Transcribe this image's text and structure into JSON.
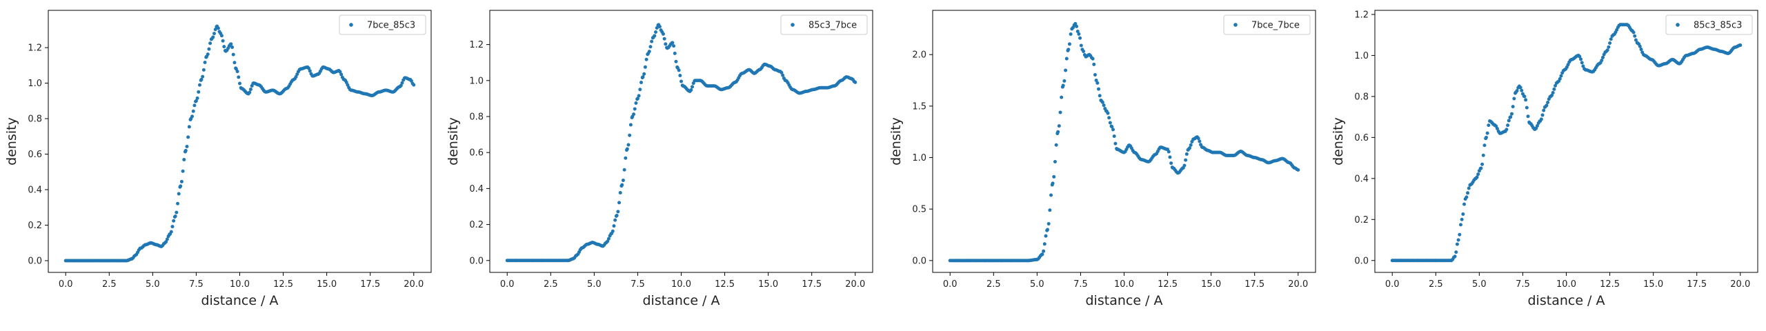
{
  "figure": {
    "colors": {
      "series": "#1f77b4",
      "axes": "#000000",
      "background": "#ffffff"
    }
  },
  "chart_data": [
    {
      "type": "scatter",
      "xlabel": "distance / A",
      "ylabel": "density",
      "xlim": [
        -1.0,
        21.0
      ],
      "ylim": [
        -0.066,
        1.41
      ],
      "xticks": [
        "0.0",
        "2.5",
        "5.0",
        "7.5",
        "10.0",
        "12.5",
        "15.0",
        "17.5",
        "20.0"
      ],
      "yticks": [
        "0.0",
        "0.2",
        "0.4",
        "0.6",
        "0.8",
        "1.0",
        "1.2"
      ],
      "legend": "top-right",
      "grid": false,
      "series": [
        {
          "name": "7bce_85c3",
          "x": [
            0,
            0.5,
            1,
            1.5,
            2,
            2.5,
            3,
            3.5,
            3.8,
            4.0,
            4.3,
            4.6,
            4.9,
            5.2,
            5.5,
            5.7,
            6.0,
            6.3,
            6.6,
            6.9,
            7.2,
            7.5,
            7.8,
            8.1,
            8.4,
            8.7,
            8.9,
            9.2,
            9.5,
            9.8,
            10.1,
            10.5,
            10.8,
            11.1,
            11.5,
            11.9,
            12.3,
            12.7,
            13.1,
            13.5,
            13.9,
            14.2,
            14.5,
            14.8,
            15.1,
            15.4,
            15.7,
            16.0,
            16.4,
            16.8,
            17.2,
            17.6,
            18.0,
            18.4,
            18.8,
            19.2,
            19.5,
            19.8,
            20.0
          ],
          "y": [
            0,
            0,
            0,
            0,
            0,
            0,
            0,
            0,
            0.01,
            0.03,
            0.07,
            0.09,
            0.1,
            0.09,
            0.08,
            0.1,
            0.15,
            0.25,
            0.42,
            0.62,
            0.8,
            0.9,
            1.02,
            1.15,
            1.25,
            1.32,
            1.28,
            1.18,
            1.22,
            1.08,
            0.97,
            0.94,
            1.0,
            0.99,
            0.95,
            0.96,
            0.94,
            0.97,
            1.02,
            1.08,
            1.09,
            1.04,
            1.05,
            1.09,
            1.08,
            1.06,
            1.07,
            1.02,
            0.96,
            0.95,
            0.94,
            0.93,
            0.95,
            0.96,
            0.95,
            0.98,
            1.03,
            1.02,
            0.99
          ]
        }
      ]
    },
    {
      "type": "scatter",
      "xlabel": "distance / A",
      "ylabel": "density",
      "xlim": [
        -1.0,
        21.0
      ],
      "ylim": [
        -0.066,
        1.39
      ],
      "xticks": [
        "0.0",
        "2.5",
        "5.0",
        "7.5",
        "10.0",
        "12.5",
        "15.0",
        "17.5",
        "20.0"
      ],
      "yticks": [
        "0.0",
        "0.2",
        "0.4",
        "0.6",
        "0.8",
        "1.0",
        "1.2"
      ],
      "legend": "top-right",
      "grid": false,
      "series": [
        {
          "name": "85c3_7bce",
          "x": [
            0,
            0.5,
            1,
            1.5,
            2,
            2.5,
            3,
            3.5,
            3.8,
            4.0,
            4.3,
            4.6,
            4.9,
            5.2,
            5.5,
            5.7,
            6.0,
            6.3,
            6.6,
            6.9,
            7.2,
            7.5,
            7.8,
            8.1,
            8.4,
            8.7,
            8.9,
            9.2,
            9.5,
            9.8,
            10.1,
            10.5,
            10.8,
            11.1,
            11.5,
            11.9,
            12.3,
            12.7,
            13.1,
            13.5,
            13.9,
            14.2,
            14.5,
            14.8,
            15.1,
            15.4,
            15.7,
            16.0,
            16.4,
            16.8,
            17.2,
            17.6,
            18.0,
            18.4,
            18.8,
            19.2,
            19.5,
            19.8,
            20.0
          ],
          "y": [
            0,
            0,
            0,
            0,
            0,
            0,
            0,
            0,
            0.01,
            0.03,
            0.07,
            0.09,
            0.1,
            0.09,
            0.08,
            0.1,
            0.15,
            0.25,
            0.42,
            0.62,
            0.8,
            0.9,
            1.02,
            1.15,
            1.24,
            1.31,
            1.27,
            1.18,
            1.21,
            1.07,
            0.97,
            0.94,
            1.0,
            1.0,
            0.97,
            0.97,
            0.95,
            0.96,
            0.99,
            1.04,
            1.06,
            1.04,
            1.06,
            1.09,
            1.08,
            1.06,
            1.05,
            1.0,
            0.95,
            0.93,
            0.94,
            0.95,
            0.96,
            0.96,
            0.97,
            1.0,
            1.02,
            1.01,
            0.99
          ]
        }
      ]
    },
    {
      "type": "scatter",
      "xlabel": "distance / A",
      "ylabel": "density",
      "xlim": [
        -1.0,
        21.0
      ],
      "ylim": [
        -0.115,
        2.43
      ],
      "xticks": [
        "0.0",
        "2.5",
        "5.0",
        "7.5",
        "10.0",
        "12.5",
        "15.0",
        "17.5",
        "20.0"
      ],
      "yticks": [
        "0.0",
        "0.5",
        "1.0",
        "1.5",
        "2.0"
      ],
      "legend": "top-right",
      "grid": false,
      "series": [
        {
          "name": "7bce_7bce",
          "x": [
            0,
            0.5,
            1,
            1.5,
            2,
            2.5,
            3,
            3.5,
            4,
            4.5,
            5.0,
            5.3,
            5.6,
            5.9,
            6.2,
            6.5,
            6.8,
            7.0,
            7.2,
            7.4,
            7.6,
            7.8,
            8.0,
            8.2,
            8.4,
            8.7,
            9.0,
            9.3,
            9.6,
            10.0,
            10.3,
            10.6,
            11.0,
            11.4,
            11.8,
            12.1,
            12.5,
            12.8,
            13.1,
            13.4,
            13.7,
            14.0,
            14.2,
            14.5,
            14.8,
            15.1,
            15.5,
            15.9,
            16.3,
            16.7,
            17.1,
            17.5,
            17.9,
            18.3,
            18.7,
            19.1,
            19.5,
            19.8,
            20.0
          ],
          "y": [
            0,
            0,
            0,
            0,
            0,
            0,
            0,
            0,
            0,
            0,
            0.01,
            0.06,
            0.3,
            0.75,
            1.25,
            1.7,
            2.05,
            2.25,
            2.3,
            2.2,
            2.05,
            1.98,
            2.0,
            1.96,
            1.75,
            1.55,
            1.45,
            1.3,
            1.08,
            1.05,
            1.12,
            1.05,
            0.98,
            0.96,
            1.03,
            1.1,
            1.08,
            0.9,
            0.85,
            0.9,
            1.08,
            1.18,
            1.2,
            1.1,
            1.07,
            1.05,
            1.05,
            1.02,
            1.02,
            1.06,
            1.02,
            1.0,
            0.98,
            0.95,
            0.97,
            0.99,
            0.95,
            0.9,
            0.88
          ]
        }
      ]
    },
    {
      "type": "scatter",
      "xlabel": "distance / A",
      "ylabel": "density",
      "xlim": [
        -1.0,
        21.0
      ],
      "ylim": [
        -0.058,
        1.22
      ],
      "xticks": [
        "0.0",
        "2.5",
        "5.0",
        "7.5",
        "10.0",
        "12.5",
        "15.0",
        "17.5",
        "20.0"
      ],
      "yticks": [
        "0.0",
        "0.2",
        "0.4",
        "0.6",
        "0.8",
        "1.0",
        "1.2"
      ],
      "legend": "top-right",
      "grid": false,
      "series": [
        {
          "name": "85c3_85c3",
          "x": [
            0,
            0.5,
            1,
            1.5,
            2,
            2.5,
            3,
            3.4,
            3.6,
            3.8,
            4.0,
            4.2,
            4.5,
            4.8,
            5.1,
            5.4,
            5.6,
            5.9,
            6.2,
            6.5,
            6.8,
            7.1,
            7.3,
            7.6,
            7.9,
            8.2,
            8.5,
            8.8,
            9.1,
            9.5,
            9.9,
            10.3,
            10.7,
            11.1,
            11.5,
            11.9,
            12.3,
            12.7,
            13.1,
            13.5,
            13.8,
            14.1,
            14.5,
            14.9,
            15.3,
            15.7,
            16.1,
            16.5,
            16.9,
            17.3,
            17.7,
            18.1,
            18.5,
            18.9,
            19.3,
            19.7,
            20.0
          ],
          "y": [
            0,
            0,
            0,
            0,
            0,
            0,
            0,
            0,
            0.02,
            0.1,
            0.2,
            0.3,
            0.37,
            0.4,
            0.45,
            0.6,
            0.68,
            0.66,
            0.62,
            0.63,
            0.7,
            0.82,
            0.85,
            0.8,
            0.67,
            0.64,
            0.68,
            0.75,
            0.8,
            0.87,
            0.93,
            0.98,
            1.0,
            0.93,
            0.92,
            0.96,
            1.02,
            1.1,
            1.15,
            1.15,
            1.12,
            1.06,
            1.0,
            0.98,
            0.95,
            0.96,
            0.98,
            0.96,
            1.0,
            1.01,
            1.03,
            1.04,
            1.03,
            1.02,
            1.01,
            1.04,
            1.05
          ]
        }
      ]
    }
  ]
}
